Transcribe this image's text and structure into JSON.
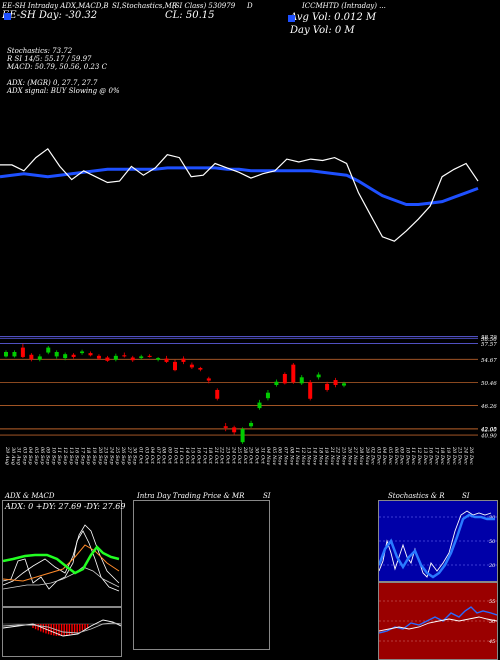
{
  "header": {
    "line1": [
      "EE-SH Intraday ADX,MACD,B",
      "SI,Stochastics,MR",
      "(SI Class) 530979",
      "D",
      "ICCMHTD (Intraday) ..."
    ],
    "line2_left": "EE-SH Day: -30.32",
    "line2_mid": "CL: 50.15",
    "line2_right": "Avg Vol: 0.012  M",
    "line3_right": "Day Vol: 0   M"
  },
  "indicators": {
    "stochastics": "Stochastics: 73.72",
    "rsi": "R              SI 14/5: 55.17 / 59.97",
    "macd": "MACD: 50.79, 50.56, 0.23 C",
    "adx": "ADX:                              (MGR) 0, 27.7, 27.7",
    "adx_signal": "ADX  signal:                                BUY Slowing @ 0%"
  },
  "chart_data": [
    {
      "type": "line",
      "series": [
        {
          "values": [
            52.3,
            52.3,
            51.9,
            52.8,
            53.4,
            52.2,
            51.3,
            51.9,
            51.5,
            51.1,
            51.2,
            52.2,
            51.6,
            52.1,
            53.0,
            52.8,
            51.5,
            51.6,
            52.4,
            52.1,
            51.8,
            51.4,
            51.7,
            51.9,
            52.7,
            52.5,
            52.7,
            52.6,
            52.8,
            52.4,
            50.4,
            48.9,
            47.4,
            47.1,
            47.8,
            48.6,
            49.5,
            51.5,
            52.0,
            52.4,
            51.2
          ]
        },
        {
          "values": [
            51.5,
            51.6,
            51.7,
            51.6,
            51.5,
            51.6,
            51.7,
            51.8,
            51.9,
            52.0,
            52.0,
            52.0,
            52.0,
            52.0,
            52.1,
            52.1,
            52.1,
            52.1,
            52.1,
            52.0,
            52.0,
            51.9,
            51.9,
            51.9,
            51.9,
            51.9,
            51.9,
            51.8,
            51.7,
            51.6,
            51.2,
            50.7,
            50.2,
            49.9,
            49.6,
            49.6,
            49.7,
            49.8,
            50.1,
            50.4,
            50.7
          ]
        }
      ]
    },
    {
      "type": "candlestick",
      "candles": [
        {
          "open": 55.2,
          "close": 56.0,
          "high": 56.3,
          "low": 55.0
        },
        {
          "open": 55.2,
          "close": 56.0,
          "high": 56.3,
          "low": 55.0
        },
        {
          "open": 56.8,
          "close": 55.1,
          "high": 57.5,
          "low": 54.9
        },
        {
          "open": 55.5,
          "close": 54.7,
          "high": 55.8,
          "low": 54.3
        },
        {
          "open": 54.6,
          "close": 55.2,
          "high": 55.6,
          "low": 54.3
        },
        {
          "open": 55.9,
          "close": 56.8,
          "high": 57.1,
          "low": 55.6
        },
        {
          "open": 55.2,
          "close": 56.0,
          "high": 56.3,
          "low": 54.8
        },
        {
          "open": 54.9,
          "close": 55.6,
          "high": 55.9,
          "low": 54.5
        },
        {
          "open": 55.5,
          "close": 55.1,
          "high": 55.8,
          "low": 54.8
        },
        {
          "open": 55.8,
          "close": 56.1,
          "high": 56.4,
          "low": 55.5
        },
        {
          "open": 55.8,
          "close": 55.4,
          "high": 56.1,
          "low": 55.2
        },
        {
          "open": 55.3,
          "close": 54.8,
          "high": 55.6,
          "low": 54.6
        },
        {
          "open": 55.0,
          "close": 54.4,
          "high": 55.3,
          "low": 54.2
        },
        {
          "open": 54.6,
          "close": 55.3,
          "high": 55.7,
          "low": 54.3
        },
        {
          "open": 55.4,
          "close": 55.2,
          "high": 55.9,
          "low": 55.0
        },
        {
          "open": 55.0,
          "close": 54.5,
          "high": 55.3,
          "low": 54.2
        },
        {
          "open": 54.9,
          "close": 55.2,
          "high": 55.5,
          "low": 54.6
        },
        {
          "open": 55.3,
          "close": 55.1,
          "high": 55.6,
          "low": 55.0
        },
        {
          "open": 54.6,
          "close": 54.9,
          "high": 55.1,
          "low": 54.3
        },
        {
          "open": 54.8,
          "close": 54.2,
          "high": 55.3,
          "low": 54.0
        },
        {
          "open": 54.2,
          "close": 52.7,
          "high": 54.6,
          "low": 52.5
        },
        {
          "open": 54.8,
          "close": 54.2,
          "high": 55.2,
          "low": 53.8
        },
        {
          "open": 53.7,
          "close": 53.2,
          "high": 54.1,
          "low": 52.9
        },
        {
          "open": 53.1,
          "close": 52.8,
          "high": 53.3,
          "low": 52.5
        },
        {
          "open": 51.2,
          "close": 50.8,
          "high": 51.5,
          "low": 50.3
        },
        {
          "open": 49.1,
          "close": 47.5,
          "high": 49.4,
          "low": 47.2
        },
        {
          "open": 42.5,
          "close": 42.2,
          "high": 43.1,
          "low": 41.6
        },
        {
          "open": 42.3,
          "close": 41.4,
          "high": 42.6,
          "low": 41.0
        },
        {
          "open": 39.6,
          "close": 42.0,
          "high": 42.3,
          "low": 39.3
        },
        {
          "open": 42.5,
          "close": 43.1,
          "high": 43.5,
          "low": 42.2
        },
        {
          "open": 45.8,
          "close": 46.8,
          "high": 47.3,
          "low": 45.5
        },
        {
          "open": 47.6,
          "close": 48.6,
          "high": 49.1,
          "low": 47.2
        },
        {
          "open": 50.0,
          "close": 50.6,
          "high": 51.0,
          "low": 49.7
        },
        {
          "open": 52.0,
          "close": 50.3,
          "high": 52.3,
          "low": 50.1
        },
        {
          "open": 53.7,
          "close": 50.5,
          "high": 54.0,
          "low": 50.2
        },
        {
          "open": 50.3,
          "close": 51.4,
          "high": 51.8,
          "low": 50.0
        },
        {
          "open": 50.5,
          "close": 47.5,
          "high": 50.9,
          "low": 47.2
        },
        {
          "open": 51.4,
          "close": 51.9,
          "high": 52.3,
          "low": 51.0
        },
        {
          "open": 50.2,
          "close": 49.1,
          "high": 50.6,
          "low": 48.8
        },
        {
          "open": 50.9,
          "close": 50.0,
          "high": 51.3,
          "low": 49.6
        },
        {
          "open": 49.9,
          "close": 50.3,
          "high": 50.6,
          "low": 49.6
        }
      ],
      "levels": [
        "58.79",
        "58.50",
        "57.57",
        "54.67",
        "50.46",
        "46.26",
        "42.05",
        "42.00",
        "40.90"
      ],
      "y_range": [
        40,
        60
      ]
    }
  ],
  "dates": [
    "29 Aug",
    "30 Aug",
    "31 Aug",
    "03 Sep",
    "04 Sep",
    "05 Sep",
    "06 Sep",
    "09 Sep",
    "10 Sep",
    "11 Sep",
    "12 Sep",
    "13 Sep",
    "16 Sep",
    "17 Sep",
    "18 Sep",
    "19 Sep",
    "20 Sep",
    "23 Sep",
    "24 Sep",
    "25 Sep",
    "26 Sep",
    "27 Sep",
    "30 Sep",
    "01 Oct",
    "03 Oct",
    "04 Oct",
    "07 Oct",
    "08 Oct",
    "09 Oct",
    "10 Oct",
    "11 Oct",
    "14 Oct",
    "15 Oct",
    "16 Oct",
    "17 Oct",
    "18 Oct",
    "21 Oct",
    "22 Oct",
    "23 Oct",
    "24 Oct",
    "25 Oct",
    "28 Oct",
    "29 Oct",
    "30 Oct",
    "31 Oct",
    "04 Nov",
    "05 Nov",
    "06 Nov",
    "07 Nov",
    "08 Nov",
    "11 Nov",
    "12 Nov",
    "13 Nov",
    "14 Nov",
    "18 Nov",
    "19 Nov",
    "21 Nov",
    "22 Nov",
    "25 Nov",
    "26 Nov",
    "27 Nov",
    "28 Nov",
    "29 Nov",
    "02 Dec",
    "03 Dec",
    "04 Dec",
    "05 Dec",
    "06 Dec",
    "09 Dec",
    "10 Dec",
    "11 Dec",
    "12 Dec",
    "13 Dec",
    "16 Dec",
    "17 Dec",
    "18 Dec",
    "19 Dec",
    "20 Dec",
    "23 Dec",
    "24 Dec",
    "26 Dec"
  ],
  "panels": {
    "adx_title": "ADX  & MACD",
    "adx_values": "ADX: 0   +DY: 27.69   -DY: 27.69",
    "intraday_title": "Intra  Day Trading Price  & MR",
    "intraday_si": "SI",
    "stoch_title": "Stochastics & R",
    "stoch_si": "SI",
    "stoch_levels": [
      "80",
      "50",
      "20"
    ],
    "rsi_levels": [
      "55",
      "50",
      "45"
    ]
  },
  "colors": {
    "background": "#000000",
    "price_line": "#ffffff",
    "avg_line": "#1e50ff",
    "up": "#00cc00",
    "down": "#ff0000",
    "level_line": "#b8602a",
    "level_line_blue": "#6a6aff",
    "stoch_bg": "#0000a8",
    "rsi_bg": "#9a0000",
    "adx_green": "#22ff22"
  }
}
